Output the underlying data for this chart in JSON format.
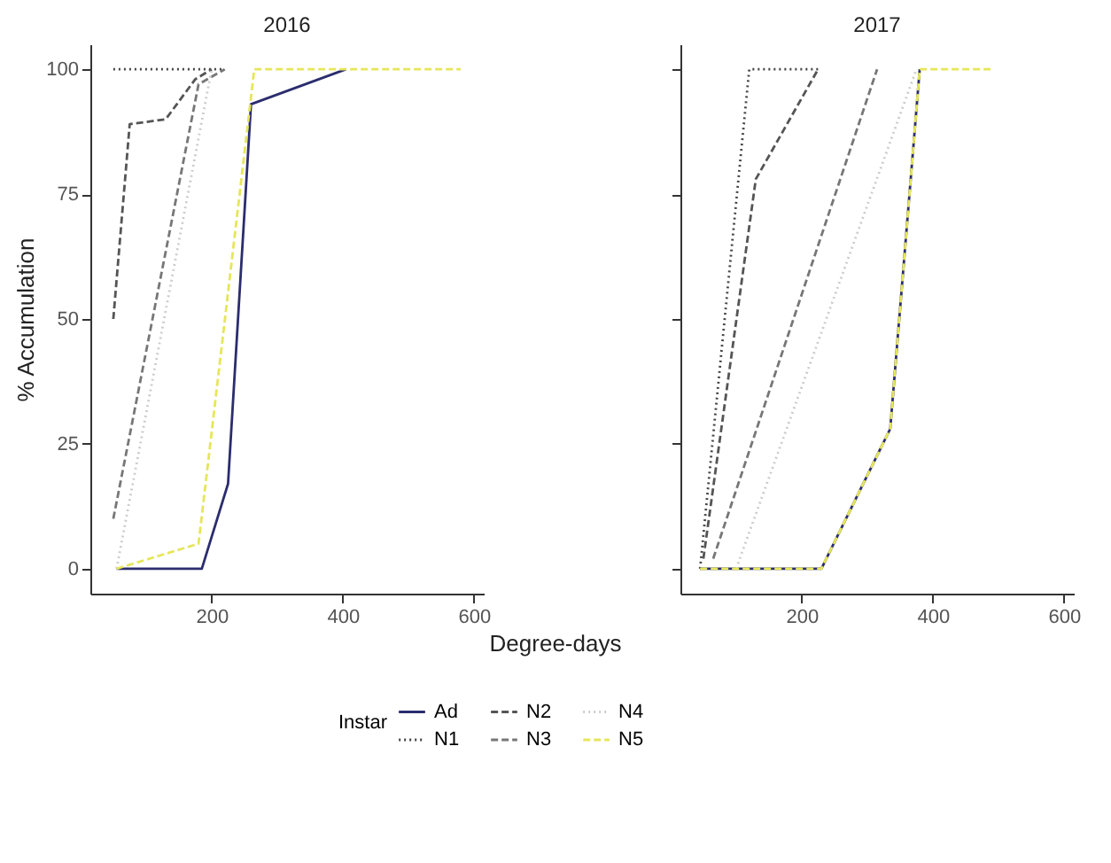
{
  "chart_data": [
    {
      "type": "line",
      "title": "2016",
      "xlabel": "Degree-days",
      "ylabel": "% Accumulation",
      "legend_title": "Instar",
      "legend": "bottom",
      "grid": false,
      "xlim": [
        15,
        615
      ],
      "xticks": [
        200,
        400,
        600
      ],
      "ylim": [
        -5,
        105
      ],
      "yticks": [
        0,
        25,
        50,
        75,
        100
      ],
      "series": [
        {
          "name": "Ad",
          "color": "#2b2d6e",
          "line_style": "solid",
          "x": [
            55,
            185,
            225,
            260,
            405
          ],
          "values": [
            0,
            0,
            17,
            93,
            100
          ]
        },
        {
          "name": "N1",
          "color": "#444444",
          "line_style": "dotted",
          "x": [
            50,
            180,
            220
          ],
          "values": [
            100,
            100,
            100
          ]
        },
        {
          "name": "N2",
          "color": "#555555",
          "line_style": "dashed",
          "x": [
            50,
            75,
            130,
            175,
            200
          ],
          "values": [
            50,
            89,
            90,
            98,
            100
          ]
        },
        {
          "name": "N3",
          "color": "#777777",
          "line_style": "dashed",
          "x": [
            50,
            180,
            220
          ],
          "values": [
            10,
            97,
            100
          ]
        },
        {
          "name": "N4",
          "color": "#cccccc",
          "line_style": "dotted",
          "x": [
            55,
            200
          ],
          "values": [
            0,
            100
          ]
        },
        {
          "name": "N5",
          "color": "#e6e65a",
          "line_style": "dashed",
          "x": [
            55,
            180,
            265,
            580
          ],
          "values": [
            0,
            5,
            100,
            100
          ]
        }
      ]
    },
    {
      "type": "line",
      "title": "2017",
      "tick_labels": "x",
      "xlim": [
        15,
        615
      ],
      "xticks": [
        200,
        400,
        600
      ],
      "ylim": [
        -5,
        105
      ],
      "yticks": [
        0,
        25,
        50,
        75,
        100
      ],
      "grid": false,
      "series": [
        {
          "color": "#2b2d6e",
          "line_style": "solid",
          "x": [
            45,
            230,
            335,
            380
          ],
          "values": [
            0,
            0,
            28,
            100
          ]
        },
        {
          "color": "#444444",
          "line_style": "dotted",
          "x": [
            45,
            120,
            230
          ],
          "values": [
            0,
            100,
            100
          ]
        },
        {
          "color": "#555555",
          "line_style": "dashed",
          "x": [
            50,
            130,
            225
          ],
          "values": [
            2,
            78,
            100
          ]
        },
        {
          "color": "#777777",
          "line_style": "dashed",
          "x": [
            65,
            315
          ],
          "values": [
            2,
            100
          ]
        },
        {
          "color": "#cccccc",
          "line_style": "dotted",
          "x": [
            100,
            375
          ],
          "values": [
            0,
            100
          ]
        },
        {
          "color": "#e6e65a",
          "line_style": "dashed",
          "x": [
            45,
            230,
            335,
            380,
            490
          ],
          "values": [
            0,
            0,
            28,
            100,
            100
          ]
        }
      ]
    }
  ]
}
